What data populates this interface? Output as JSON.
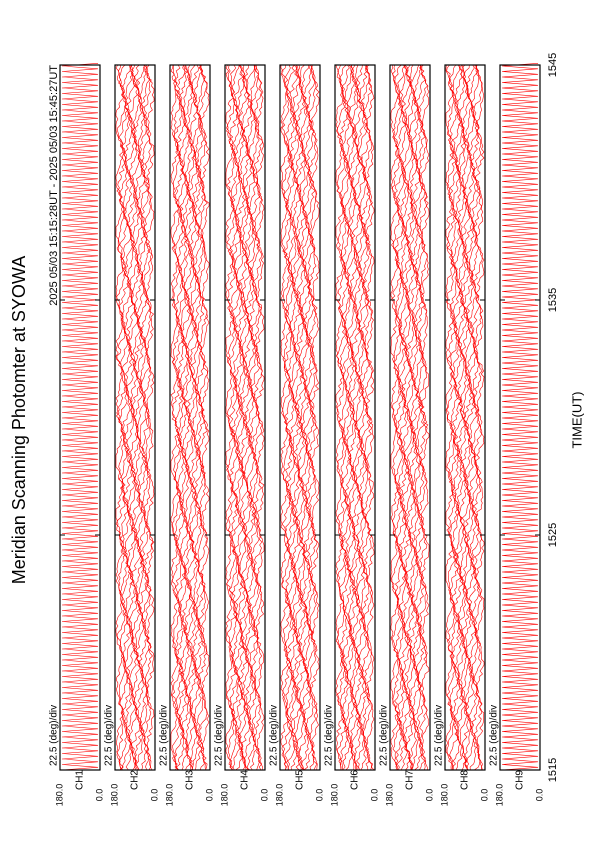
{
  "chart_data": {
    "type": "multi-panel",
    "title": "Meridian Scanning Photomter at SYOWA",
    "subtitle": "2025 05/03 15:15:28UT - 2025 05/03 15:45:27UT",
    "x_label": "TIME(UT)",
    "xlim": [
      1515,
      1545
    ],
    "xticks": [
      1515,
      1525,
      1535,
      1545
    ],
    "trace_color": "#ff0000",
    "panels": [
      {
        "label": "CH1",
        "scale": "22.5 (deg)/div",
        "ylim": [
          0,
          180
        ],
        "yticks": [
          {
            "value": 180,
            "label": "180.0"
          },
          {
            "value": 0,
            "label": "0.0"
          }
        ]
      },
      {
        "label": "CH2",
        "scale": "22.5 (deg)/div",
        "ylim": [
          0,
          180
        ],
        "yticks": [
          {
            "value": 180,
            "label": "180.0"
          },
          {
            "value": 0,
            "label": "0.0"
          }
        ]
      },
      {
        "label": "CH3",
        "scale": "22.5 (deg)/div",
        "ylim": [
          0,
          180
        ],
        "yticks": [
          {
            "value": 180,
            "label": "180.0"
          },
          {
            "value": 0,
            "label": "0.0"
          }
        ]
      },
      {
        "label": "CH4",
        "scale": "22.5 (deg)/div",
        "ylim": [
          0,
          180
        ],
        "yticks": [
          {
            "value": 180,
            "label": "180.0"
          },
          {
            "value": 0,
            "label": "0.0"
          }
        ]
      },
      {
        "label": "CH5",
        "scale": "22.5 (deg)/div",
        "ylim": [
          0,
          180
        ],
        "yticks": [
          {
            "value": 180,
            "label": "180.0"
          },
          {
            "value": 0,
            "label": "0.0"
          }
        ]
      },
      {
        "label": "CH6",
        "scale": "22.5 (deg)/div",
        "ylim": [
          0,
          180
        ],
        "yticks": [
          {
            "value": 180,
            "label": "180.0"
          },
          {
            "value": 0,
            "label": "0.0"
          }
        ]
      },
      {
        "label": "CH7",
        "scale": "22.5 (deg)/div",
        "ylim": [
          0,
          180
        ],
        "yticks": [
          {
            "value": 180,
            "label": "180.0"
          },
          {
            "value": 0,
            "label": "0.0"
          }
        ]
      },
      {
        "label": "CH8",
        "scale": "22.5 (deg)/div",
        "ylim": [
          0,
          180
        ],
        "yticks": [
          {
            "value": 180,
            "label": "180.0"
          },
          {
            "value": 0,
            "label": "0.0"
          }
        ]
      },
      {
        "label": "CH9",
        "scale": "22.5 (deg)/div",
        "ylim": [
          0,
          180
        ],
        "yticks": [
          {
            "value": 180,
            "label": "180.0"
          },
          {
            "value": 0,
            "label": "0.0"
          }
        ]
      }
    ]
  }
}
